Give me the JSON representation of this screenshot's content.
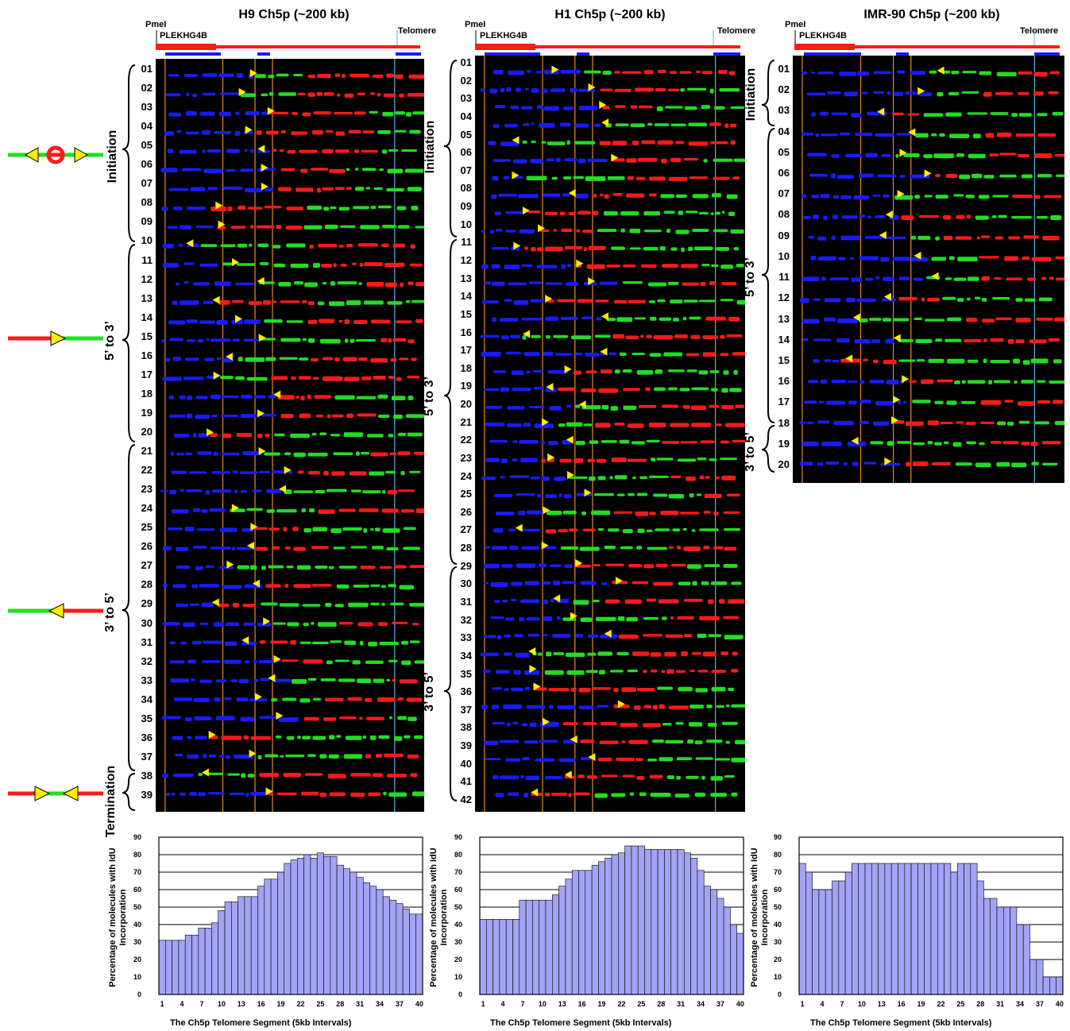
{
  "figure_panels": [
    {
      "id": "h9",
      "title": "H9 Ch5p (~200 kb)",
      "pme": "PmeI",
      "gene": "PLEKHG4B",
      "telomere": "Telomere",
      "rows": [
        "01",
        "02",
        "03",
        "04",
        "05",
        "06",
        "07",
        "08",
        "09",
        "10",
        "11",
        "12",
        "13",
        "14",
        "15",
        "16",
        "17",
        "18",
        "19",
        "20",
        "21",
        "22",
        "23",
        "24",
        "25",
        "26",
        "27",
        "28",
        "29",
        "30",
        "31",
        "32",
        "33",
        "34",
        "35",
        "36",
        "37",
        "38",
        "39"
      ],
      "groups": [
        "Initiation",
        "5’ to 3’",
        "3’ to 5’",
        "Termination"
      ]
    },
    {
      "id": "h1",
      "title": "H1 Ch5p (~200 kb)",
      "pme": "PmeI",
      "gene": "PLEKHG4B",
      "telomere": "Telomere",
      "rows": [
        "01",
        "02",
        "03",
        "04",
        "05",
        "06",
        "07",
        "08",
        "09",
        "10",
        "11",
        "12",
        "13",
        "14",
        "15",
        "16",
        "17",
        "18",
        "19",
        "20",
        "21",
        "22",
        "23",
        "24",
        "25",
        "26",
        "27",
        "28",
        "29",
        "30",
        "31",
        "32",
        "33",
        "34",
        "35",
        "36",
        "37",
        "38",
        "39",
        "40",
        "41",
        "42"
      ],
      "groups": [
        "Initiation",
        "5’ to 3’",
        "3’ to 5’"
      ]
    },
    {
      "id": "imr",
      "title": "IMR-90 Ch5p (~200 kb)",
      "pme": "PmeI",
      "gene": "PLEKHG4B",
      "telomere": "Telomere",
      "rows": [
        "01",
        "02",
        "03",
        "04",
        "05",
        "06",
        "07",
        "08",
        "09",
        "10",
        "11",
        "12",
        "13",
        "14",
        "15",
        "16",
        "17",
        "18",
        "19",
        "20"
      ],
      "groups": [
        "Initiation",
        "5’ to 3’",
        "3’ to 5’"
      ]
    }
  ],
  "colors": {
    "blue": "#1a1aff",
    "red": "#ff1a1a",
    "green": "#22dd22",
    "yellow": "#ffee00",
    "orange_line": "#e08a30",
    "cyan_line": "#5ab4d8",
    "bar_fill": "#a3a3f5"
  },
  "chart_data": [
    {
      "type": "bar",
      "title": "",
      "xlabel": "The Ch5p Telomere Segment (5kb Intervals)",
      "ylabel": "Percentage of molecules with IdU Incorporation",
      "ylim": [
        0,
        90
      ],
      "yticks": [
        0,
        10,
        20,
        30,
        40,
        50,
        60,
        70,
        80,
        90
      ],
      "xticks": [
        1,
        4,
        7,
        10,
        13,
        16,
        19,
        22,
        25,
        28,
        31,
        34,
        37,
        40
      ],
      "grid": true,
      "categories": [
        1,
        2,
        3,
        4,
        5,
        6,
        7,
        8,
        9,
        10,
        11,
        12,
        13,
        14,
        15,
        16,
        17,
        18,
        19,
        20,
        21,
        22,
        23,
        24,
        25,
        26,
        27,
        28,
        29,
        30,
        31,
        32,
        33,
        34,
        35,
        36,
        37,
        38,
        39,
        40
      ],
      "values": [
        31,
        31,
        31,
        31,
        34,
        34,
        38,
        38,
        41,
        48,
        53,
        53,
        56,
        56,
        56,
        62,
        66,
        66,
        70,
        75,
        77,
        78,
        80,
        78,
        81,
        79,
        79,
        74,
        72,
        70,
        67,
        64,
        62,
        60,
        56,
        54,
        52,
        49,
        46,
        46
      ]
    },
    {
      "type": "bar",
      "title": "",
      "xlabel": "The Ch5p Telomere Segment (5kb Intervals)",
      "ylabel": "Percentage of molecules with IdU Incorporation",
      "ylim": [
        0,
        90
      ],
      "yticks": [
        0,
        10,
        20,
        30,
        40,
        50,
        60,
        70,
        80,
        90
      ],
      "xticks": [
        1,
        4,
        7,
        10,
        13,
        16,
        19,
        22,
        25,
        28,
        31,
        34,
        37,
        40
      ],
      "grid": true,
      "categories": [
        1,
        2,
        3,
        4,
        5,
        6,
        7,
        8,
        9,
        10,
        11,
        12,
        13,
        14,
        15,
        16,
        17,
        18,
        19,
        20,
        21,
        22,
        23,
        24,
        25,
        26,
        27,
        28,
        29,
        30,
        31,
        32,
        33,
        34,
        35,
        36,
        37,
        38,
        39,
        40
      ],
      "values": [
        43,
        43,
        43,
        43,
        43,
        43,
        54,
        54,
        54,
        54,
        54,
        57,
        62,
        66,
        71,
        71,
        71,
        74,
        76,
        78,
        80,
        81,
        85,
        85,
        85,
        83,
        83,
        83,
        83,
        83,
        83,
        81,
        78,
        71,
        62,
        60,
        55,
        50,
        40,
        35
      ]
    },
    {
      "type": "bar",
      "title": "",
      "xlabel": "The Ch5p Telomere Segment (5kb Intervals)",
      "ylabel": "Percentage of molecules with IdU Incorporation",
      "ylim": [
        0,
        90
      ],
      "yticks": [
        0,
        10,
        20,
        30,
        40,
        50,
        60,
        70,
        80,
        90
      ],
      "xticks": [
        1,
        4,
        7,
        10,
        13,
        16,
        19,
        22,
        25,
        28,
        31,
        34,
        37,
        40
      ],
      "grid": true,
      "categories": [
        1,
        2,
        3,
        4,
        5,
        6,
        7,
        8,
        9,
        10,
        11,
        12,
        13,
        14,
        15,
        16,
        17,
        18,
        19,
        20,
        21,
        22,
        23,
        24,
        25,
        26,
        27,
        28,
        29,
        30,
        31,
        32,
        33,
        34,
        35,
        36,
        37,
        38,
        39,
        40
      ],
      "values": [
        75,
        70,
        60,
        60,
        60,
        65,
        65,
        70,
        75,
        75,
        75,
        75,
        75,
        75,
        75,
        75,
        75,
        75,
        75,
        75,
        75,
        75,
        75,
        70,
        75,
        75,
        75,
        65,
        55,
        55,
        50,
        50,
        50,
        40,
        40,
        20,
        20,
        10,
        10,
        10
      ]
    }
  ]
}
